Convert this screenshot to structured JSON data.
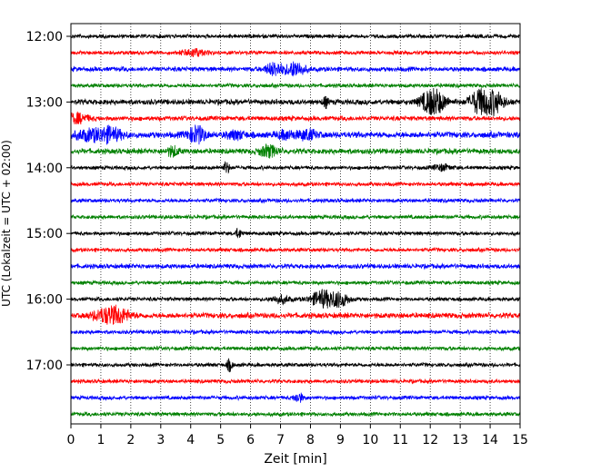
{
  "chart_data": {
    "type": "line",
    "title": "",
    "xlabel": "Zeit  [min]",
    "ylabel": "UTC (Lokalzeit = UTC + 02:00)",
    "xlim": [
      0,
      15
    ],
    "x_ticks": [
      0,
      1,
      2,
      3,
      4,
      5,
      6,
      7,
      8,
      9,
      10,
      11,
      12,
      13,
      14,
      15
    ],
    "y_tick_labels": [
      "12:00",
      "13:00",
      "14:00",
      "15:00",
      "16:00",
      "17:00"
    ],
    "grid": "vertical dotted",
    "trace_colors": [
      "#000000",
      "#ff0000",
      "#0000ff",
      "#008000"
    ],
    "traces": [
      {
        "start": "12:00",
        "color": "#000000",
        "level": 2.5,
        "events": []
      },
      {
        "start": "12:15",
        "color": "#ff0000",
        "level": 2.5,
        "events": [
          {
            "t": 4.1,
            "amp": 4,
            "dur": 0.35
          }
        ]
      },
      {
        "start": "12:30",
        "color": "#0000ff",
        "level": 3,
        "events": [
          {
            "t": 6.8,
            "amp": 7,
            "dur": 0.3
          },
          {
            "t": 7.5,
            "amp": 8,
            "dur": 0.3
          }
        ]
      },
      {
        "start": "12:45",
        "color": "#008000",
        "level": 2.5,
        "events": []
      },
      {
        "start": "13:00",
        "color": "#000000",
        "level": 3.5,
        "events": [
          {
            "t": 8.5,
            "amp": 5,
            "dur": 0.1
          },
          {
            "t": 12.1,
            "amp": 14,
            "dur": 0.4
          },
          {
            "t": 13.6,
            "amp": 11,
            "dur": 0.3
          },
          {
            "t": 14.1,
            "amp": 12,
            "dur": 0.35
          }
        ]
      },
      {
        "start": "13:15",
        "color": "#ff0000",
        "level": 3,
        "events": [
          {
            "t": 0.2,
            "amp": 5,
            "dur": 0.4
          }
        ]
      },
      {
        "start": "13:30",
        "color": "#0000ff",
        "level": 4,
        "events": [
          {
            "t": 0.6,
            "amp": 5,
            "dur": 0.5
          },
          {
            "t": 1.3,
            "amp": 7,
            "dur": 0.4
          },
          {
            "t": 4.2,
            "amp": 9,
            "dur": 0.3
          },
          {
            "t": 5.5,
            "amp": 4,
            "dur": 0.3
          },
          {
            "t": 7.2,
            "amp": 4,
            "dur": 0.3
          },
          {
            "t": 7.9,
            "amp": 5,
            "dur": 0.3
          }
        ]
      },
      {
        "start": "13:45",
        "color": "#008000",
        "level": 3.5,
        "events": [
          {
            "t": 3.4,
            "amp": 5,
            "dur": 0.2
          },
          {
            "t": 6.6,
            "amp": 6,
            "dur": 0.3
          }
        ]
      },
      {
        "start": "14:00",
        "color": "#000000",
        "level": 2.5,
        "events": [
          {
            "t": 5.2,
            "amp": 6,
            "dur": 0.1
          },
          {
            "t": 12.4,
            "amp": 3,
            "dur": 0.3
          }
        ]
      },
      {
        "start": "14:15",
        "color": "#ff0000",
        "level": 2.5,
        "events": []
      },
      {
        "start": "14:30",
        "color": "#0000ff",
        "level": 2.5,
        "events": []
      },
      {
        "start": "14:45",
        "color": "#008000",
        "level": 2.5,
        "events": []
      },
      {
        "start": "15:00",
        "color": "#000000",
        "level": 2.5,
        "events": [
          {
            "t": 5.6,
            "amp": 5,
            "dur": 0.1
          }
        ]
      },
      {
        "start": "15:15",
        "color": "#ff0000",
        "level": 2.5,
        "events": []
      },
      {
        "start": "15:30",
        "color": "#0000ff",
        "level": 3,
        "events": []
      },
      {
        "start": "15:45",
        "color": "#008000",
        "level": 2.5,
        "events": []
      },
      {
        "start": "16:00",
        "color": "#000000",
        "level": 2.5,
        "events": [
          {
            "t": 7.0,
            "amp": 4,
            "dur": 0.3
          },
          {
            "t": 8.4,
            "amp": 9,
            "dur": 0.4
          },
          {
            "t": 9.0,
            "amp": 7,
            "dur": 0.3
          }
        ]
      },
      {
        "start": "16:15",
        "color": "#ff0000",
        "level": 3.5,
        "events": [
          {
            "t": 1.1,
            "amp": 6,
            "dur": 0.4
          },
          {
            "t": 1.6,
            "amp": 7,
            "dur": 0.4
          }
        ]
      },
      {
        "start": "16:30",
        "color": "#0000ff",
        "level": 2.5,
        "events": []
      },
      {
        "start": "16:45",
        "color": "#008000",
        "level": 2.5,
        "events": []
      },
      {
        "start": "17:00",
        "color": "#000000",
        "level": 2.5,
        "events": [
          {
            "t": 5.3,
            "amp": 6,
            "dur": 0.1
          }
        ]
      },
      {
        "start": "17:15",
        "color": "#ff0000",
        "level": 2.5,
        "events": []
      },
      {
        "start": "17:30",
        "color": "#0000ff",
        "level": 2.5,
        "events": [
          {
            "t": 7.6,
            "amp": 5,
            "dur": 0.15
          }
        ]
      },
      {
        "start": "17:45",
        "color": "#008000",
        "level": 2.5,
        "events": []
      }
    ]
  }
}
